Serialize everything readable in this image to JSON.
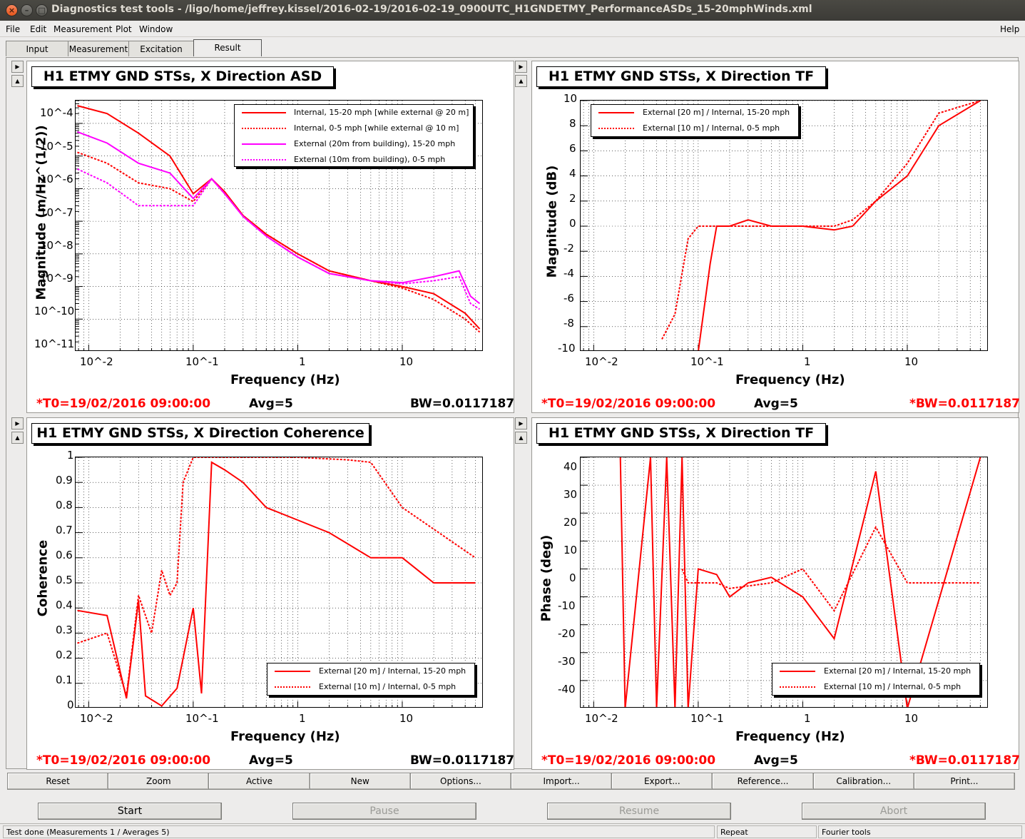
{
  "window": {
    "title": "Diagnostics test tools - /ligo/home/jeffrey.kissel/2016-02-19/2016-02-19_0900UTC_H1GNDETMY_PerformanceASDs_15-20mphWinds.xml"
  },
  "menu": {
    "file": "File",
    "edit": "Edit",
    "measurement": "Measurement",
    "plot": "Plot",
    "window": "Window",
    "help": "Help"
  },
  "tabs": [
    "Input",
    "Measurement",
    "Excitation",
    "Result"
  ],
  "panels": {
    "asd": {
      "title": "H1 ETMY GND STSs, X Direction ASD",
      "ylabel": "Magnitude (m/Hz^(1/2))",
      "xlabel": "Frequency (Hz)",
      "t0": "*T0=19/02/2016 09:00:00",
      "avg": "Avg=5",
      "bw": "BW=0.0117187"
    },
    "tfmag": {
      "title": "H1 ETMY GND STSs, X Direction TF",
      "ylabel": "Magnitude (dB)",
      "xlabel": "Frequency (Hz)",
      "t0": "*T0=19/02/2016 09:00:00",
      "avg": "Avg=5",
      "bw": "*BW=0.0117187"
    },
    "coh": {
      "title": "H1 ETMY GND STSs, X Direction Coherence",
      "ylabel": "Coherence",
      "xlabel": "Frequency (Hz)",
      "t0": "*T0=19/02/2016 09:00:00",
      "avg": "Avg=5",
      "bw": "BW=0.0117187"
    },
    "tfphase": {
      "title": "H1 ETMY GND STSs, X Direction TF",
      "ylabel": "Phase (deg)",
      "xlabel": "Frequency (Hz)",
      "t0": "*T0=19/02/2016 09:00:00",
      "avg": "Avg=5",
      "bw": "*BW=0.0117187"
    }
  },
  "legends": {
    "asd": [
      "Internal, 15-20 mph [while external @ 20 m]",
      "Internal, 0-5 mph [while external @ 10 m]",
      "External (20m from building), 15-20 mph",
      "External (10m from building), 0-5 mph"
    ],
    "tf": [
      "External [20 m] / Internal, 15-20 mph",
      "External [10 m] / Internal, 0-5 mph"
    ]
  },
  "axis_ticks": {
    "x": [
      "10^-2",
      "10^-1",
      "1",
      "10"
    ],
    "asd_y": [
      "10^-4",
      "10^-5",
      "10^-6",
      "10^-7",
      "10^-8",
      "10^-9",
      "10^-10",
      "10^-11"
    ],
    "tfmag_y": [
      "10",
      "8",
      "6",
      "4",
      "2",
      "0",
      "-2",
      "-4",
      "-6",
      "-8",
      "-10"
    ],
    "coh_y": [
      "1",
      "0.9",
      "0.8",
      "0.7",
      "0.6",
      "0.5",
      "0.4",
      "0.3",
      "0.2",
      "0.1",
      "0"
    ],
    "phase_y": [
      "40",
      "30",
      "20",
      "10",
      "0",
      "-10",
      "-20",
      "-30",
      "-40"
    ]
  },
  "colors": {
    "red": "#ff0000",
    "magenta": "#ff00ff"
  },
  "toolbar": [
    "Reset",
    "Zoom",
    "Active",
    "New",
    "Options...",
    "Import...",
    "Export...",
    "Reference...",
    "Calibration...",
    "Print..."
  ],
  "controls": {
    "start": "Start",
    "pause": "Pause",
    "resume": "Resume",
    "abort": "Abort"
  },
  "status": {
    "message": "Test done (Measurements 1 / Averages 5)",
    "repeat": "Repeat",
    "fourier": "Fourier tools"
  },
  "chart_data": [
    {
      "type": "line",
      "title": "H1 ETMY GND STSs, X Direction ASD",
      "xlabel": "Frequency (Hz)",
      "ylabel": "Magnitude (m/Hz^(1/2))",
      "xscale": "log",
      "yscale": "log",
      "xlim": [
        0.0075,
        60
      ],
      "ylim": [
        1e-11,
        0.0005
      ],
      "grid": true,
      "legend": "top-right",
      "series": [
        {
          "name": "Internal, 15-20 mph [while external @ 20 m]",
          "x": [
            0.0078,
            0.015,
            0.03,
            0.06,
            0.1,
            0.15,
            0.2,
            0.3,
            0.5,
            1,
            2,
            5,
            10,
            20,
            40,
            55
          ],
          "y": [
            0.00035,
            0.0002,
            5e-05,
            1e-05,
            7e-07,
            2e-06,
            8e-07,
            1.5e-07,
            4e-08,
            1e-08,
            3e-09,
            1.5e-09,
            1e-09,
            6e-10,
            1.5e-10,
            5e-11
          ]
        },
        {
          "name": "Internal, 0-5 mph [while external @ 10 m]",
          "x": [
            0.0078,
            0.015,
            0.03,
            0.06,
            0.1,
            0.15,
            0.2,
            0.3,
            0.5,
            1,
            2,
            5,
            10,
            20,
            40,
            55
          ],
          "y": [
            1.3e-05,
            6e-06,
            1.5e-06,
            1e-06,
            4e-07,
            2e-06,
            7e-07,
            1.5e-07,
            4e-08,
            1e-08,
            3e-09,
            1.5e-09,
            9e-10,
            4e-10,
            1e-10,
            4e-11
          ]
        },
        {
          "name": "External (20m from building), 15-20 mph",
          "x": [
            0.0078,
            0.015,
            0.03,
            0.06,
            0.1,
            0.15,
            0.2,
            0.3,
            0.5,
            1,
            2,
            5,
            10,
            20,
            35,
            45,
            55
          ],
          "y": [
            5.5e-05,
            2.5e-05,
            6e-06,
            3e-06,
            5e-07,
            2e-06,
            7e-07,
            1.4e-07,
            3.5e-08,
            8e-09,
            2.5e-09,
            1.5e-09,
            1.3e-09,
            2e-09,
            3e-09,
            5e-10,
            3e-10
          ]
        },
        {
          "name": "External (10m from building), 0-5 mph",
          "x": [
            0.0078,
            0.015,
            0.03,
            0.06,
            0.1,
            0.15,
            0.2,
            0.3,
            0.5,
            1,
            2,
            5,
            10,
            20,
            35,
            45,
            55
          ],
          "y": [
            4e-06,
            1.5e-06,
            3e-07,
            3e-07,
            3e-07,
            2e-06,
            7e-07,
            1.4e-07,
            3.5e-08,
            8e-09,
            2.5e-09,
            1.5e-09,
            1.2e-09,
            1.5e-09,
            2e-09,
            3e-10,
            2e-10
          ]
        }
      ]
    },
    {
      "type": "line",
      "title": "H1 ETMY GND STSs, X Direction TF",
      "xlabel": "Frequency (Hz)",
      "ylabel": "Magnitude (dB)",
      "xscale": "log",
      "xlim": [
        0.0075,
        60
      ],
      "ylim": [
        -10,
        10
      ],
      "grid": true,
      "legend": "top-left",
      "series": [
        {
          "name": "External [20 m] / Internal, 15-20 mph",
          "x": [
            0.1,
            0.13,
            0.15,
            0.2,
            0.3,
            0.5,
            1,
            2,
            3,
            5,
            10,
            20,
            50
          ],
          "y": [
            -10,
            -3,
            0,
            0,
            0.5,
            0,
            0,
            -0.3,
            0,
            2,
            4,
            8,
            10
          ]
        },
        {
          "name": "External [10 m] / Internal, 0-5 mph",
          "x": [
            0.045,
            0.06,
            0.08,
            0.1,
            0.15,
            0.2,
            0.5,
            1,
            2,
            3,
            5,
            10,
            20,
            50
          ],
          "y": [
            -9,
            -7,
            -1,
            0,
            0,
            0,
            0,
            0,
            0,
            0.5,
            2,
            5,
            9,
            10
          ]
        }
      ]
    },
    {
      "type": "line",
      "title": "H1 ETMY GND STSs, X Direction Coherence",
      "xlabel": "Frequency (Hz)",
      "ylabel": "Coherence",
      "xscale": "log",
      "xlim": [
        0.0075,
        60
      ],
      "ylim": [
        0,
        1
      ],
      "grid": true,
      "legend": "bottom-right",
      "series": [
        {
          "name": "External [20 m] / Internal, 15-20 mph",
          "x": [
            0.0078,
            0.015,
            0.023,
            0.03,
            0.035,
            0.05,
            0.07,
            0.1,
            0.12,
            0.15,
            0.2,
            0.3,
            0.5,
            1,
            2,
            5,
            10,
            20,
            50
          ],
          "y": [
            0.39,
            0.37,
            0.04,
            0.43,
            0.05,
            0.01,
            0.08,
            0.4,
            0.06,
            0.98,
            0.95,
            0.9,
            0.8,
            0.75,
            0.7,
            0.6,
            0.6,
            0.5,
            0.5
          ]
        },
        {
          "name": "External [10 m] / Internal, 0-5 mph",
          "x": [
            0.0078,
            0.015,
            0.023,
            0.03,
            0.04,
            0.05,
            0.06,
            0.07,
            0.08,
            0.1,
            0.15,
            0.3,
            1,
            3,
            5,
            10,
            50
          ],
          "y": [
            0.26,
            0.3,
            0.05,
            0.45,
            0.3,
            0.55,
            0.45,
            0.5,
            0.9,
            1,
            1,
            1,
            1,
            0.99,
            0.98,
            0.8,
            0.6
          ]
        }
      ]
    },
    {
      "type": "line",
      "title": "H1 ETMY GND STSs, X Direction TF",
      "xlabel": "Frequency (Hz)",
      "ylabel": "Phase (deg)",
      "xscale": "log",
      "xlim": [
        0.0075,
        60
      ],
      "ylim": [
        -45,
        45
      ],
      "grid": true,
      "legend": "bottom-right",
      "series": [
        {
          "name": "External [20 m] / Internal, 15-20 mph",
          "x": [
            0.018,
            0.02,
            0.035,
            0.04,
            0.05,
            0.06,
            0.07,
            0.08,
            0.1,
            0.15,
            0.2,
            0.3,
            0.5,
            1,
            2,
            5,
            10,
            50
          ],
          "y": [
            45,
            -45,
            45,
            -45,
            45,
            -45,
            45,
            -45,
            5,
            3,
            -5,
            0,
            2,
            -5,
            -20,
            40,
            -45,
            45
          ]
        },
        {
          "name": "External [10 m] / Internal, 0-5 mph",
          "x": [
            0.07,
            0.08,
            0.1,
            0.15,
            0.2,
            0.5,
            1,
            2,
            5,
            10,
            50
          ],
          "y": [
            5,
            0,
            0,
            0,
            -2,
            0,
            5,
            -10,
            20,
            0,
            0
          ]
        }
      ]
    }
  ]
}
